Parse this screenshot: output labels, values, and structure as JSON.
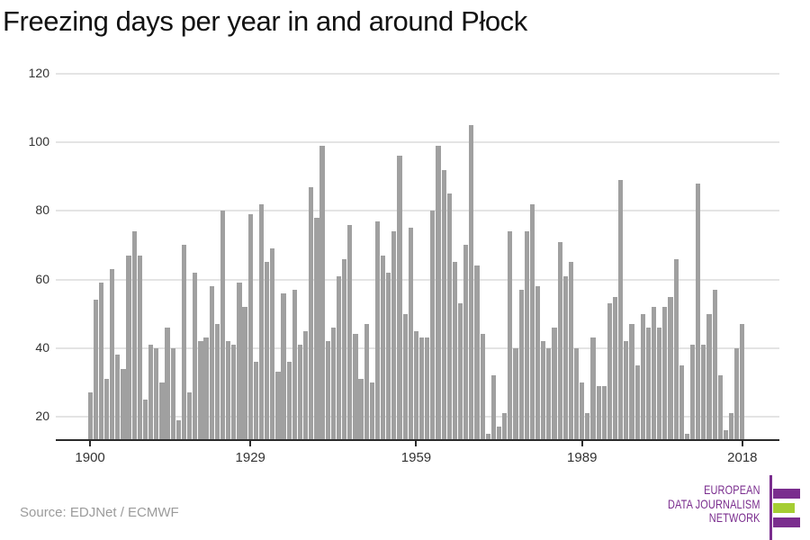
{
  "header": {
    "title": "Freezing days per year in and around Płock"
  },
  "footer": {
    "source": "Source: EDJNet / ECMWF"
  },
  "logo": {
    "lines": [
      "EUROPEAN",
      "DATA JOURNALISM",
      "NETWORK"
    ],
    "purple": "#7a2d8e",
    "green": "#a5cd33"
  },
  "colors": {
    "bar": "#a0a0a0",
    "grid": "#e4e4e4",
    "axis": "#2b2b2b",
    "tick_label": "#333333",
    "title": "#131313",
    "source": "#9b9b9b",
    "background": "#ffffff"
  },
  "chart_data": {
    "type": "bar",
    "title": "Freezing days per year in and around Płock",
    "xlabel": "",
    "ylabel": "",
    "x_start": 1900,
    "x_end": 2018,
    "values": [
      27,
      54,
      59,
      31,
      63,
      38,
      34,
      67,
      74,
      67,
      25,
      41,
      40,
      30,
      46,
      40,
      19,
      70,
      27,
      62,
      42,
      43,
      58,
      47,
      80,
      42,
      41,
      59,
      52,
      79,
      36,
      82,
      65,
      69,
      33,
      56,
      36,
      57,
      41,
      45,
      87,
      78,
      99,
      42,
      46,
      61,
      66,
      76,
      44,
      31,
      47,
      30,
      77,
      67,
      62,
      74,
      96,
      50,
      75,
      45,
      43,
      43,
      80,
      99,
      92,
      85,
      65,
      53,
      70,
      105,
      64,
      44,
      15,
      32,
      17,
      21,
      74,
      40,
      57,
      74,
      82,
      58,
      42,
      40,
      46,
      71,
      61,
      65,
      40,
      30,
      21,
      43,
      29,
      29,
      53,
      55,
      89,
      42,
      47,
      35,
      50,
      46,
      52,
      46,
      52,
      55,
      66,
      35,
      15,
      41,
      88,
      41,
      50,
      57,
      32,
      16,
      21,
      40,
      47
    ],
    "ylim": [
      13.4,
      120
    ],
    "yticks": [
      20,
      40,
      60,
      80,
      100,
      120
    ],
    "xticks": [
      1900,
      1929,
      1959,
      1989,
      2018
    ],
    "grid": true,
    "legend": false,
    "bar_color": "#a0a0a0"
  }
}
